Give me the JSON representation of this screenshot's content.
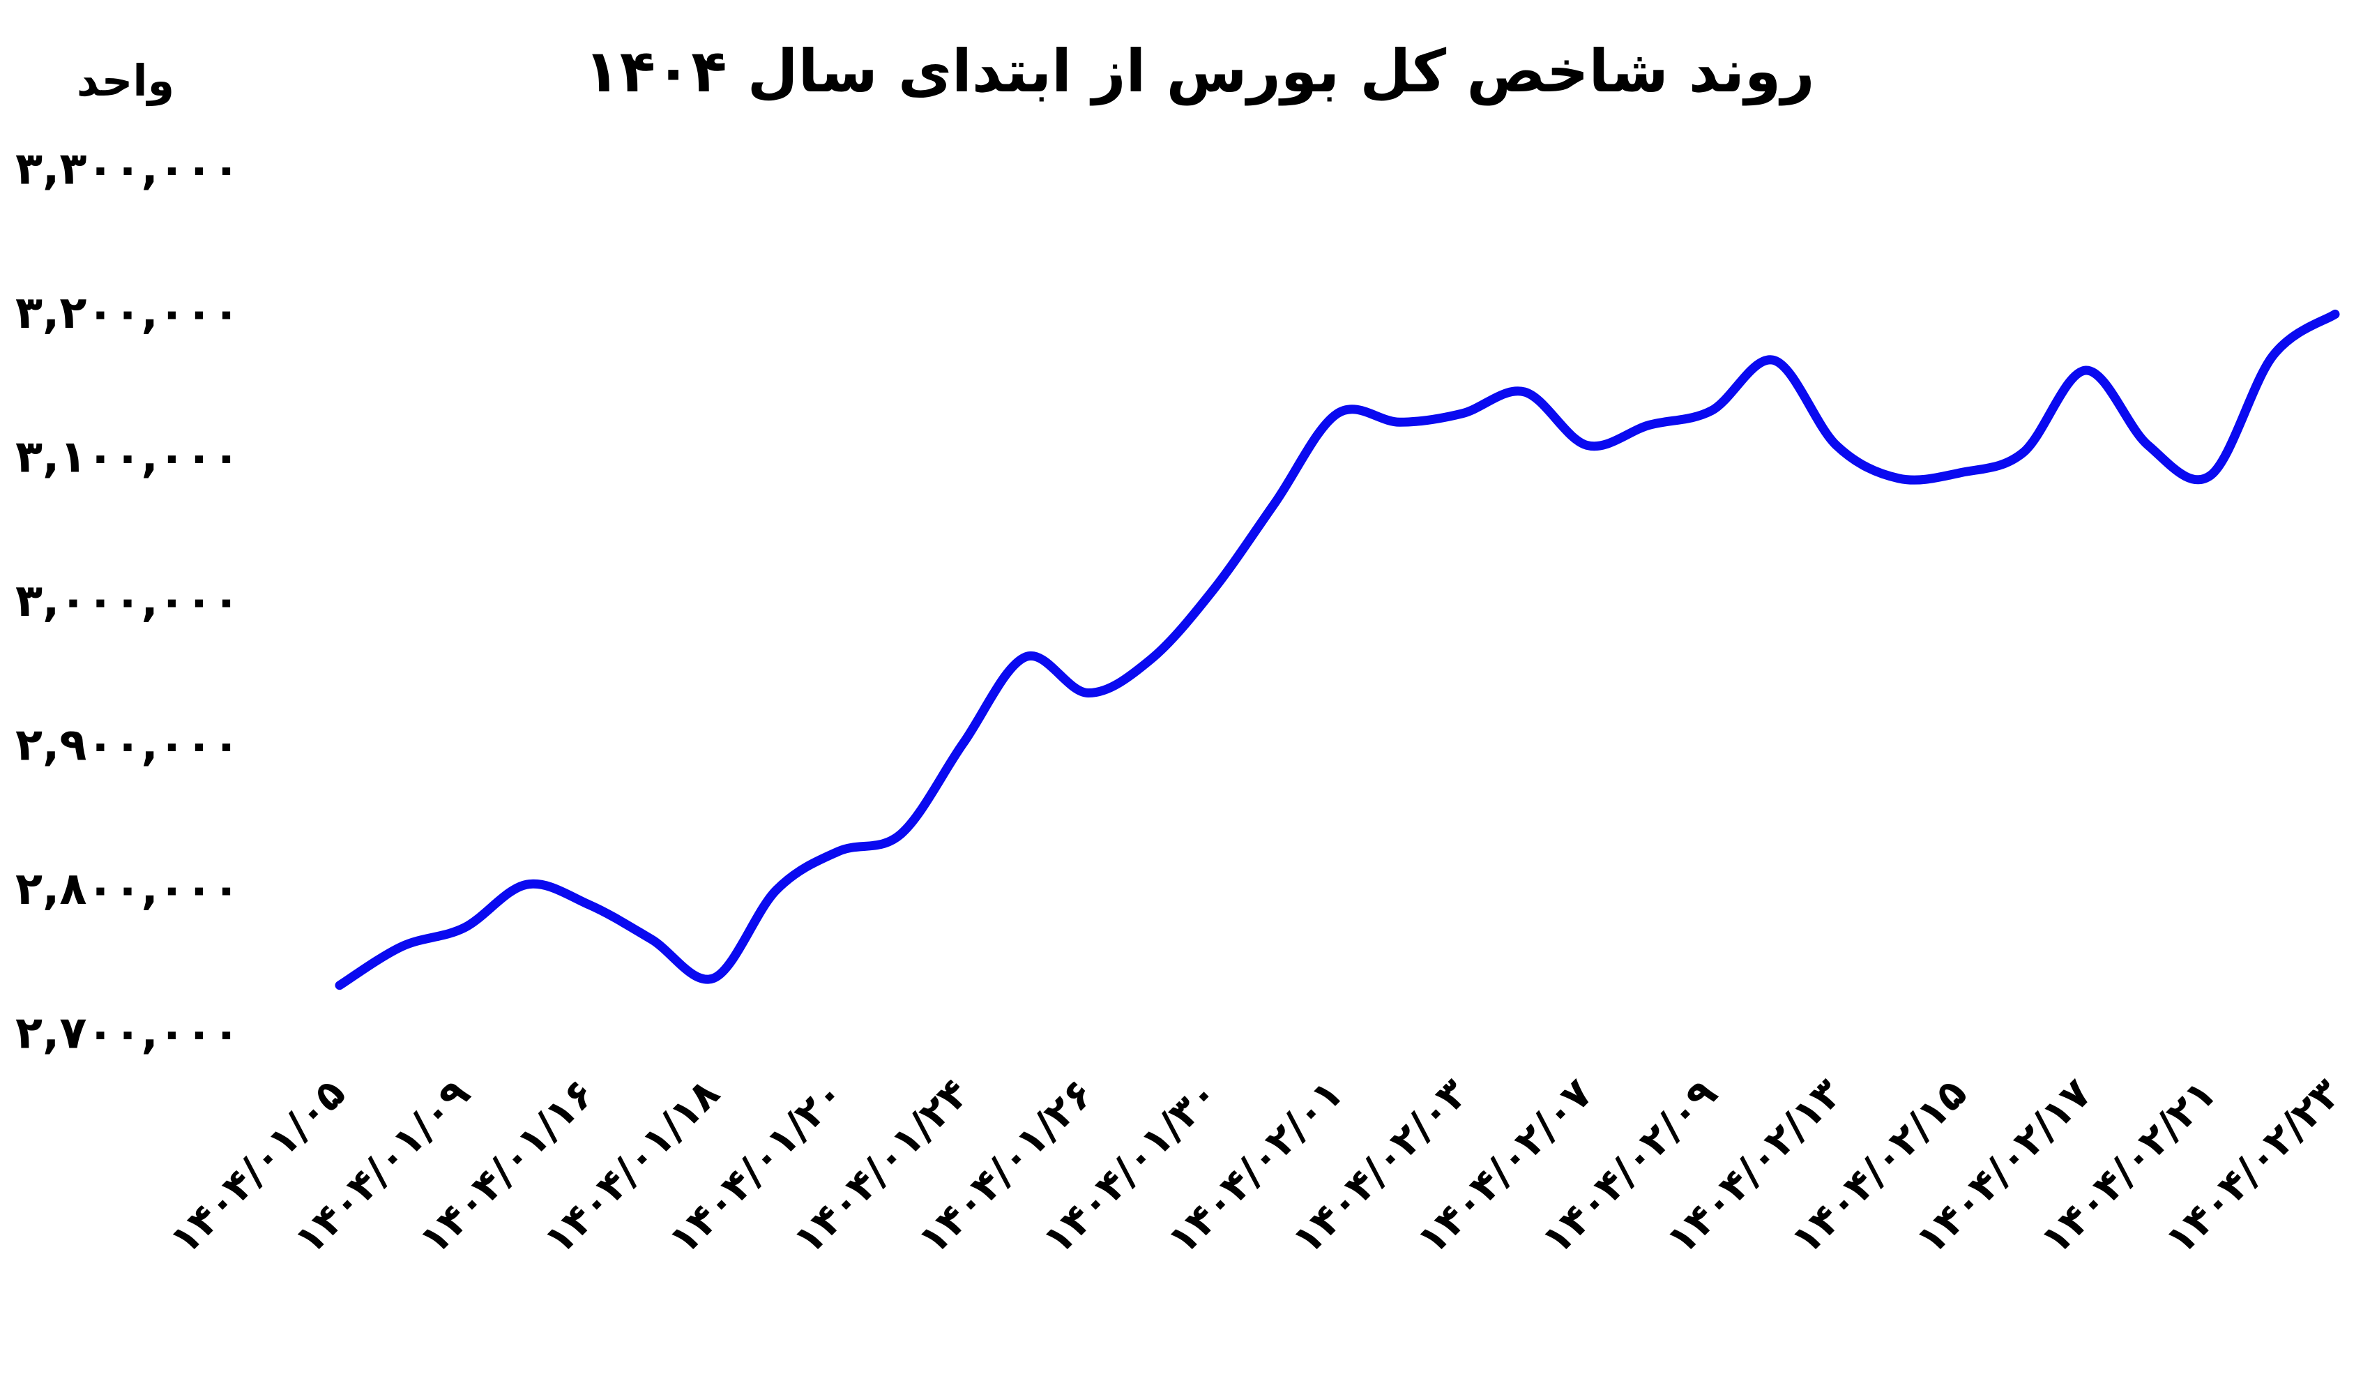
{
  "chart_data": {
    "type": "line",
    "title": "روند شاخص کل بورس از ابتدای سال ۱۴۰۴",
    "y_label": "واحد",
    "categories": [
      "۱۴۰۴/۰۱/۰۵",
      null,
      "۱۴۰۴/۰۱/۰۹",
      null,
      "۱۴۰۴/۰۱/۱۶",
      null,
      "۱۴۰۴/۰۱/۱۸",
      null,
      "۱۴۰۴/۰۱/۲۰",
      null,
      "۱۴۰۴/۰۱/۲۴",
      null,
      "۱۴۰۴/۰۱/۲۶",
      null,
      "۱۴۰۴/۰۱/۳۰",
      null,
      "۱۴۰۴/۰۲/۰۱",
      null,
      "۱۴۰۴/۰۲/۰۳",
      null,
      "۱۴۰۴/۰۲/۰۷",
      null,
      "۱۴۰۴/۰۲/۰۹",
      null,
      "۱۴۰۴/۰۲/۱۳",
      null,
      "۱۴۰۴/۰۲/۱۵",
      null,
      "۱۴۰۴/۰۲/۱۷",
      null,
      "۱۴۰۴/۰۲/۲۱",
      null,
      "۱۴۰۴/۰۲/۲۳"
    ],
    "values": [
      2735000,
      2762000,
      2775000,
      2805000,
      2791000,
      2767000,
      2740000,
      2801000,
      2828000,
      2840000,
      2903000,
      2963000,
      2938000,
      2961000,
      3009000,
      3070000,
      3132000,
      3126000,
      3132000,
      3147000,
      3110000,
      3124000,
      3134000,
      3169000,
      3110000,
      3087000,
      3091000,
      3105000,
      3162000,
      3110000,
      3089000,
      3172000,
      3201000
    ],
    "color": "#0a0af0",
    "ylim": [
      2700000,
      3300000
    ],
    "yticks": [
      {
        "value": 2700000,
        "label": "۲,۷۰۰,۰۰۰"
      },
      {
        "value": 2800000,
        "label": "۲,۸۰۰,۰۰۰"
      },
      {
        "value": 2900000,
        "label": "۲,۹۰۰,۰۰۰"
      },
      {
        "value": 3000000,
        "label": "۳,۰۰۰,۰۰۰"
      },
      {
        "value": 3100000,
        "label": "۳,۱۰۰,۰۰۰"
      },
      {
        "value": 3200000,
        "label": "۳,۲۰۰,۰۰۰"
      },
      {
        "value": 3300000,
        "label": "۳,۳۰۰,۰۰۰"
      }
    ],
    "grid": false
  }
}
